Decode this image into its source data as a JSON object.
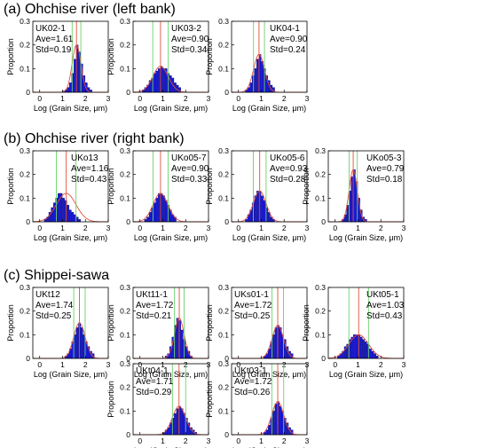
{
  "sections": [
    {
      "label": "(a) Ohchise river (left bank)"
    },
    {
      "label": "(b) Ohchise river (right bank)"
    },
    {
      "label": "(c) Shippei-sawa"
    }
  ],
  "colors": {
    "bar": "#1a1ad6",
    "bar_edge": "#00007a",
    "fit_curve": "#e0503c",
    "mean_line": "#e0503c",
    "std_lines": "#6ad16a"
  },
  "chart_data": [
    {
      "type": "bar",
      "section": 0,
      "sample": "UK02-1",
      "stats": [
        "UK02-1",
        "Ave=1.61",
        "Std=0.19"
      ],
      "mean": 1.61,
      "std": 0.19,
      "xlabel": "Log (Grain Size, μm)",
      "ylabel": "Proportion",
      "xlim": [
        -0.3,
        3
      ],
      "ylim": [
        0,
        0.3
      ],
      "xticks": [
        "0",
        "1",
        "2",
        "3"
      ],
      "yticks": [
        "0",
        "0.1",
        "0.2",
        "0.3"
      ],
      "bin_width": 0.1,
      "bin_start": 1.0,
      "values": [
        0.005,
        0.01,
        0.02,
        0.04,
        0.08,
        0.14,
        0.2,
        0.17,
        0.12,
        0.07,
        0.04,
        0.02,
        0.01
      ]
    },
    {
      "type": "bar",
      "section": 0,
      "sample": "UK03-2",
      "stats": [
        "UK03-2",
        "Ave=0.90",
        "Std=0.34"
      ],
      "mean": 0.9,
      "std": 0.34,
      "xlabel": "Log (Grain Size, μm)",
      "ylabel": "Proportion",
      "xlim": [
        -0.3,
        3
      ],
      "ylim": [
        0,
        0.3
      ],
      "xticks": [
        "0",
        "1",
        "2",
        "3"
      ],
      "yticks": [
        "0",
        "0.1",
        "0.2",
        "0.3"
      ],
      "bin_width": 0.1,
      "bin_start": 0.1,
      "values": [
        0.01,
        0.02,
        0.03,
        0.05,
        0.06,
        0.08,
        0.09,
        0.1,
        0.11,
        0.1,
        0.1,
        0.08,
        0.07,
        0.06,
        0.04,
        0.03,
        0.02
      ]
    },
    {
      "type": "bar",
      "section": 0,
      "sample": "UK04-1",
      "stats": [
        "UK04-1",
        "Ave=0.90",
        "Std=0.24"
      ],
      "mean": 0.9,
      "std": 0.24,
      "xlabel": "Log (Grain Size, μm)",
      "ylabel": "Proportion",
      "xlim": [
        -0.3,
        3
      ],
      "ylim": [
        0,
        0.3
      ],
      "xticks": [
        "0",
        "1",
        "2",
        "3"
      ],
      "yticks": [
        "0",
        "0.1",
        "0.2",
        "0.3"
      ],
      "bin_width": 0.1,
      "bin_start": 0.3,
      "values": [
        0.01,
        0.02,
        0.04,
        0.07,
        0.1,
        0.14,
        0.16,
        0.13,
        0.1,
        0.07,
        0.05,
        0.03,
        0.02
      ]
    },
    {
      "type": "bar",
      "section": 1,
      "sample": "UKo13",
      "stats": [
        "UKo13",
        "Ave=1.16",
        "Std=0.43"
      ],
      "mean": 1.16,
      "std": 0.43,
      "xlabel": "Log (Grain Size, μm)",
      "ylabel": "Proportion",
      "xlim": [
        -0.3,
        3
      ],
      "ylim": [
        0,
        0.3
      ],
      "xticks": [
        "0",
        "1",
        "2",
        "3"
      ],
      "yticks": [
        "0",
        "0.1",
        "0.2",
        "0.3"
      ],
      "bin_width": 0.1,
      "bin_start": 0.2,
      "values": [
        0.01,
        0.02,
        0.04,
        0.06,
        0.08,
        0.1,
        0.12,
        0.12,
        0.1,
        0.09,
        0.07,
        0.05,
        0.04,
        0.03,
        0.02,
        0.01
      ]
    },
    {
      "type": "bar",
      "section": 1,
      "sample": "UKo05-7",
      "stats": [
        "UKo05-7",
        "Ave=0.90",
        "Std=0.33"
      ],
      "mean": 0.9,
      "std": 0.33,
      "xlabel": "Log (Grain Size, μm)",
      "ylabel": "Proportion",
      "xlim": [
        -0.3,
        3
      ],
      "ylim": [
        0,
        0.3
      ],
      "xticks": [
        "0",
        "1",
        "2",
        "3"
      ],
      "yticks": [
        "0",
        "0.1",
        "0.2",
        "0.3"
      ],
      "bin_width": 0.1,
      "bin_start": 0.2,
      "values": [
        0.01,
        0.02,
        0.04,
        0.06,
        0.08,
        0.1,
        0.12,
        0.12,
        0.11,
        0.09,
        0.07,
        0.05,
        0.03,
        0.02
      ]
    },
    {
      "type": "bar",
      "section": 1,
      "sample": "UKo05-6",
      "stats": [
        "UKo05-6",
        "Ave=0.93",
        "Std=0.28"
      ],
      "mean": 0.93,
      "std": 0.28,
      "xlabel": "Log (Grain Size, μm)",
      "ylabel": "Proportion",
      "xlim": [
        -0.3,
        3
      ],
      "ylim": [
        0,
        0.3
      ],
      "xticks": [
        "0",
        "1",
        "2",
        "3"
      ],
      "yticks": [
        "0",
        "0.1",
        "0.2",
        "0.3"
      ],
      "bin_width": 0.1,
      "bin_start": 0.3,
      "values": [
        0.01,
        0.03,
        0.05,
        0.08,
        0.11,
        0.13,
        0.13,
        0.11,
        0.09,
        0.06,
        0.04,
        0.02,
        0.01
      ]
    },
    {
      "type": "bar",
      "section": 1,
      "sample": "UKo05-3",
      "stats": [
        "UKo05-3",
        "Ave=0.79",
        "Std=0.18"
      ],
      "mean": 0.79,
      "std": 0.18,
      "xlabel": "Log (Grain Size, μm)",
      "ylabel": "Proportion",
      "xlim": [
        -0.3,
        3
      ],
      "ylim": [
        0,
        0.3
      ],
      "xticks": [
        "0",
        "1",
        "2",
        "3"
      ],
      "yticks": [
        "0",
        "0.1",
        "0.2",
        "0.3"
      ],
      "bin_width": 0.1,
      "bin_start": 0.3,
      "values": [
        0.01,
        0.03,
        0.07,
        0.13,
        0.19,
        0.22,
        0.17,
        0.1,
        0.05,
        0.02,
        0.01
      ]
    },
    {
      "type": "bar",
      "section": 2,
      "sample": "UKt12",
      "stats": [
        "UKt12",
        "Ave=1.74",
        "Std=0.25"
      ],
      "mean": 1.74,
      "std": 0.25,
      "xlabel": "Log (Grain Size, μm)",
      "ylabel": "Proportion",
      "xlim": [
        -0.3,
        3
      ],
      "ylim": [
        0,
        0.3
      ],
      "xticks": [
        "0",
        "1",
        "2",
        "3"
      ],
      "yticks": [
        "0",
        "0.1",
        "0.2",
        "0.3"
      ],
      "bin_width": 0.1,
      "bin_start": 1.1,
      "values": [
        0.01,
        0.02,
        0.04,
        0.07,
        0.1,
        0.13,
        0.15,
        0.13,
        0.1,
        0.07,
        0.05,
        0.03,
        0.02
      ]
    },
    {
      "type": "bar",
      "section": 2,
      "sample": "UKt11-1",
      "stats": [
        "UKt11-1",
        "Ave=1.72",
        "Std=0.21"
      ],
      "mean": 1.72,
      "std": 0.21,
      "xlabel": "Log (Grain Size, μm)",
      "ylabel": "Proportion",
      "xlim": [
        -0.3,
        3
      ],
      "ylim": [
        0,
        0.3
      ],
      "xticks": [
        "0",
        "1",
        "2",
        "3"
      ],
      "yticks": [
        "0",
        "0.1",
        "0.2",
        "0.3"
      ],
      "bin_width": 0.1,
      "bin_start": 1.1,
      "values": [
        0.01,
        0.02,
        0.05,
        0.09,
        0.14,
        0.17,
        0.16,
        0.12,
        0.08,
        0.05,
        0.03,
        0.01
      ]
    },
    {
      "type": "bar",
      "section": 2,
      "sample": "UKs01-1",
      "stats": [
        "UKs01-1",
        "Ave=1.72",
        "Std=0.25"
      ],
      "mean": 1.72,
      "std": 0.25,
      "xlabel": "Log (Grain Size, μm)",
      "ylabel": "Proportion",
      "xlim": [
        -0.3,
        3
      ],
      "ylim": [
        0,
        0.3
      ],
      "xticks": [
        "0",
        "1",
        "2",
        "3"
      ],
      "yticks": [
        "0",
        "0.1",
        "0.2",
        "0.3"
      ],
      "bin_width": 0.1,
      "bin_start": 1.1,
      "values": [
        0.01,
        0.02,
        0.04,
        0.07,
        0.1,
        0.13,
        0.14,
        0.13,
        0.1,
        0.08,
        0.05,
        0.03,
        0.02
      ]
    },
    {
      "type": "bar",
      "section": 2,
      "sample": "UKt05-1",
      "stats": [
        "UKt05-1",
        "Ave=1.03",
        "Std=0.43"
      ],
      "mean": 1.03,
      "std": 0.43,
      "xlabel": "Log (Grain Size, μm)",
      "ylabel": "Proportion",
      "xlim": [
        -0.3,
        3
      ],
      "ylim": [
        0,
        0.3
      ],
      "xticks": [
        "0",
        "1",
        "2",
        "3"
      ],
      "yticks": [
        "0",
        "0.1",
        "0.2",
        "0.3"
      ],
      "bin_width": 0.1,
      "bin_start": 0.1,
      "values": [
        0.01,
        0.02,
        0.03,
        0.05,
        0.06,
        0.08,
        0.09,
        0.1,
        0.1,
        0.1,
        0.09,
        0.08,
        0.07,
        0.06,
        0.04,
        0.03,
        0.02,
        0.01
      ]
    },
    {
      "type": "bar",
      "section": 2,
      "sample": "UKt04-1",
      "stats": [
        "UKt04-1",
        "Ave=1.71",
        "Std=0.29"
      ],
      "mean": 1.71,
      "std": 0.29,
      "xlabel": "Log (Grain Size, μm)",
      "ylabel": "Proportion",
      "xlim": [
        -0.3,
        3
      ],
      "ylim": [
        0,
        0.3
      ],
      "xticks": [
        "0",
        "1",
        "2",
        "3"
      ],
      "yticks": [
        "0",
        "0.1",
        "0.2",
        "0.3"
      ],
      "bin_width": 0.1,
      "bin_start": 1.0,
      "values": [
        0.01,
        0.02,
        0.03,
        0.05,
        0.07,
        0.09,
        0.11,
        0.12,
        0.11,
        0.09,
        0.07,
        0.05,
        0.03,
        0.02,
        0.01
      ]
    },
    {
      "type": "bar",
      "section": 2,
      "sample": "UKt03-1",
      "stats": [
        "UKt03-1",
        "Ave=1.72",
        "Std=0.26"
      ],
      "mean": 1.72,
      "std": 0.26,
      "xlabel": "Log (Grain Size, μm)",
      "ylabel": "Proportion",
      "xlim": [
        -0.3,
        3
      ],
      "ylim": [
        0,
        0.3
      ],
      "xticks": [
        "0",
        "1",
        "2",
        "3"
      ],
      "yticks": [
        "0",
        "0.1",
        "0.2",
        "0.3"
      ],
      "bin_width": 0.1,
      "bin_start": 1.1,
      "values": [
        0.01,
        0.02,
        0.04,
        0.07,
        0.1,
        0.13,
        0.14,
        0.12,
        0.1,
        0.07,
        0.05,
        0.03,
        0.02
      ]
    }
  ]
}
